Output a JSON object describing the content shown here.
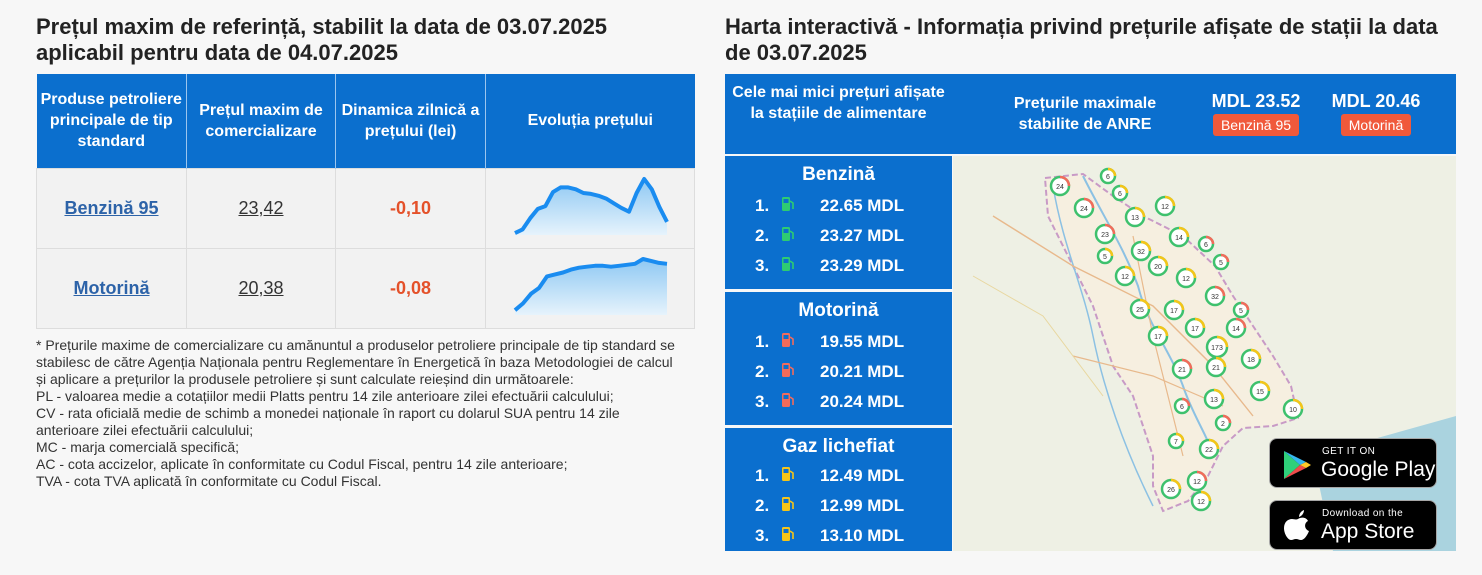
{
  "left": {
    "title": "Prețul maxim de referință, stabilit la data de 03.07.2025 aplicabil pentru data de 04.07.2025",
    "columns": [
      "Produse petroliere principale de tip standard",
      "Prețul maxim de comercializare",
      "Dinamica zilnică a prețului (lei)",
      "Evoluția prețului"
    ],
    "rows": [
      {
        "product": "Benzină 95",
        "price": "23,42",
        "change": "-0,10",
        "trend": [
          2,
          6,
          18,
          28,
          31,
          46,
          51,
          51,
          49,
          45,
          44,
          42,
          39,
          34,
          29,
          25,
          45,
          60,
          49,
          30,
          14
        ]
      },
      {
        "product": "Motorină",
        "price": "20,38",
        "change": "-0,08",
        "trend": [
          5,
          12,
          22,
          28,
          40,
          42,
          44,
          47,
          49,
          50,
          51,
          51,
          50,
          51,
          52,
          53,
          58,
          56,
          54,
          53
        ]
      }
    ],
    "note": [
      "* Prețurile maxime de comercializare cu amănuntul a produselor petroliere principale de tip standard se stabilesc de către Agenția Naționala pentru Reglementare în Energetică în baza Metodologiei de calcul și aplicare a prețurilor la produsele petroliere și sunt calculate reieșind din următoarele:",
      "PL - valoarea medie a cotațiilor medii Platts pentru 14 zile anterioare zilei efectuării calculului;",
      "CV - rata oficială medie de schimb a monedei naționale în raport cu dolarul SUA pentru 14 zile anterioare zilei efectuării calculului;",
      "MC - marja comercială specifică;",
      "AC - cota accizelor, aplicate în conformitate cu Codul Fiscal, pentru 14 zile anterioare;",
      "TVA - cota TVA aplicată în conformitate cu Codul Fiscal."
    ]
  },
  "right": {
    "title": "Harta interactivă - Informația privind prețurile afișate de stații la data de 03.07.2025",
    "banner": {
      "lowest": "Cele mai mici prețuri afișate la stațiile de alimentare",
      "anre": "Prețurile maximale stabilite de ANRE",
      "max_prices": [
        {
          "value": "MDL 23.52",
          "tag": "Benzină 95"
        },
        {
          "value": "MDL 20.46",
          "tag": "Motorină"
        }
      ]
    },
    "sections": [
      {
        "title": "Benzină",
        "icon_color": "#2ecc71",
        "items": [
          {
            "n": "1.",
            "price": "22.65 MDL"
          },
          {
            "n": "2.",
            "price": "23.27 MDL"
          },
          {
            "n": "3.",
            "price": "23.29 MDL"
          }
        ]
      },
      {
        "title": "Motorină",
        "icon_color": "#f26b5b",
        "items": [
          {
            "n": "1.",
            "price": "19.55 MDL"
          },
          {
            "n": "2.",
            "price": "20.21 MDL"
          },
          {
            "n": "3.",
            "price": "20.24 MDL"
          }
        ]
      },
      {
        "title": "Gaz lichefiat",
        "icon_color": "#f5c518",
        "items": [
          {
            "n": "1.",
            "price": "12.49 MDL"
          },
          {
            "n": "2.",
            "price": "12.99 MDL"
          },
          {
            "n": "3.",
            "price": "13.10 MDL"
          }
        ]
      }
    ],
    "clusters": [
      "24",
      "6",
      "6",
      "24",
      "13",
      "12",
      "23",
      "14",
      "32",
      "6",
      "5",
      "20",
      "5",
      "12",
      "12",
      "32",
      "25",
      "17",
      "5",
      "17",
      "17",
      "14",
      "173",
      "18",
      "21",
      "21",
      "15",
      "6",
      "13",
      "10",
      "2",
      "7",
      "22",
      "12",
      "26",
      "12"
    ],
    "stores": [
      {
        "small": "GET IT ON",
        "big": "Google Play",
        "icon": "google-play-icon"
      },
      {
        "small": "Download on the",
        "big": "App Store",
        "icon": "apple-icon"
      }
    ]
  }
}
